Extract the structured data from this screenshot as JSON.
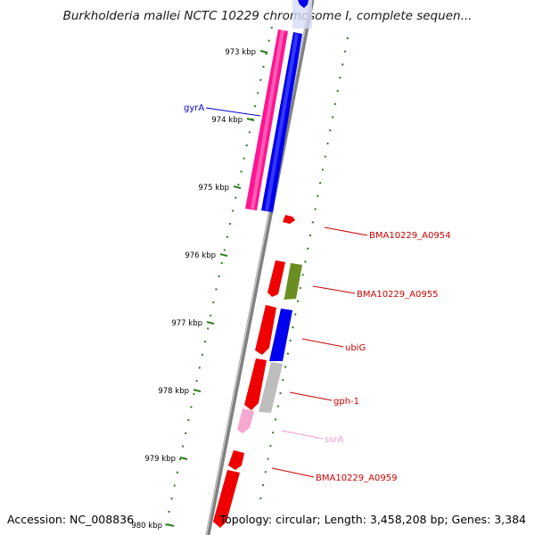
{
  "title": "Burkholderia mallei NCTC 10229 chromosome I, complete sequen...",
  "footer": {
    "accession": "Accession: NC_008836",
    "topology": "Topology: circular; Length: 3,458,208 bp; Genes: 3,384"
  },
  "ticks": [
    "973 kbp",
    "974 kbp",
    "975 kbp",
    "976 kbp",
    "977 kbp",
    "978 kbp",
    "979 kbp",
    "980 kbp"
  ],
  "genes": [
    {
      "label": "gyrA",
      "color": "#0000cc"
    },
    {
      "label": "BMA10229_A0954",
      "color": "#cc0000"
    },
    {
      "label": "BMA10229_A0955",
      "color": "#cc0000"
    },
    {
      "label": "ubiG",
      "color": "#cc0000"
    },
    {
      "label": "gph-1",
      "color": "#cc0000"
    },
    {
      "label": "ssrA",
      "color": "#f29ccf"
    },
    {
      "label": "BMA10229_A0959",
      "color": "#cc0000"
    }
  ],
  "colors": {
    "backbone": "#808080",
    "tick": "#2e7d1f",
    "pink": "#ff1493",
    "blue": "#0000ee",
    "red": "#ee0000",
    "olive": "#6b8e23",
    "grey": "#bdbdbd",
    "light_pink": "#f7a8d0"
  }
}
